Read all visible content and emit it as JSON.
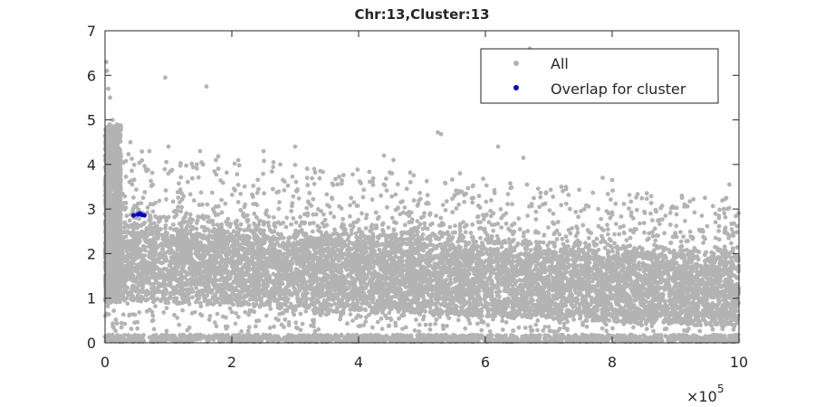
{
  "chart_data": {
    "type": "scatter",
    "title": "Chr:13,Cluster:13",
    "xlabel": "",
    "ylabel": "",
    "xlim": [
      0,
      1000000
    ],
    "ylim": [
      0,
      7
    ],
    "x_ticks": [
      0,
      200000,
      400000,
      600000,
      800000,
      1000000
    ],
    "x_tick_labels": [
      "0",
      "2",
      "4",
      "6",
      "8",
      "10"
    ],
    "x_exponent_label": "×10",
    "x_exponent": "5",
    "y_ticks": [
      0,
      1,
      2,
      3,
      4,
      5,
      6,
      7
    ],
    "y_tick_labels": [
      "0",
      "1",
      "2",
      "3",
      "4",
      "5",
      "6",
      "7"
    ],
    "grid": false,
    "legend_position": "top-right",
    "series": [
      {
        "name": "All",
        "color": "#b3b3b3",
        "distribution": "dense band decreasing from ~2.2 near x=0 to ~1.3 at x=1e6, spread ~0.6-2.8, with a low band near y=0.1",
        "outliers": [
          [
            2000,
            6.3
          ],
          [
            3000,
            6.1
          ],
          [
            5000,
            5.7
          ],
          [
            8000,
            5.5
          ],
          [
            12000,
            5.0
          ],
          [
            15000,
            4.8
          ],
          [
            95000,
            5.95
          ],
          [
            160000,
            5.75
          ],
          [
            525000,
            4.72
          ],
          [
            530000,
            4.68
          ],
          [
            670000,
            6.6
          ],
          [
            620000,
            4.4
          ],
          [
            660000,
            4.15
          ],
          [
            455000,
            4.1
          ],
          [
            175000,
            4.1
          ],
          [
            100000,
            4.4
          ],
          [
            70000,
            4.3
          ],
          [
            40000,
            4.5
          ],
          [
            300000,
            4.4
          ],
          [
            250000,
            4.3
          ],
          [
            785000,
            3.7
          ],
          [
            800000,
            3.65
          ],
          [
            910000,
            3.3
          ],
          [
            985000,
            3.55
          ],
          [
            440000,
            4.2
          ],
          [
            150000,
            4.3
          ],
          [
            330000,
            3.9
          ],
          [
            560000,
            3.8
          ],
          [
            720000,
            3.5
          ],
          [
            980000,
            3.25
          ]
        ]
      },
      {
        "name": "Overlap for cluster",
        "color": "#0000cc",
        "points": [
          [
            45000,
            2.86
          ],
          [
            52000,
            2.88
          ],
          [
            55000,
            2.9
          ],
          [
            58000,
            2.87
          ],
          [
            62000,
            2.86
          ]
        ]
      }
    ]
  }
}
